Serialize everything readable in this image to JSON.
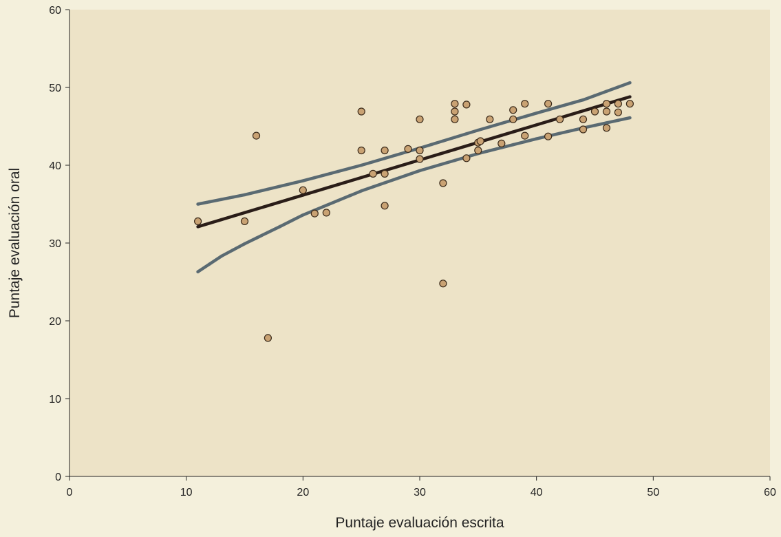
{
  "chart_data": {
    "type": "scatter",
    "title": "",
    "xlabel": "Puntaje evaluación escrita",
    "ylabel": "Puntaje evaluación oral",
    "xlim": [
      0,
      60
    ],
    "ylim": [
      0,
      60
    ],
    "x_ticks": [
      "0",
      "10",
      "20",
      "30",
      "40",
      "50",
      "60"
    ],
    "y_ticks": [
      "0",
      "10",
      "20",
      "30",
      "40",
      "50",
      "60"
    ],
    "grid": false,
    "legend": "none",
    "colors": {
      "page_background": "#f4f0dc",
      "plot_background": "#ede3c7",
      "point_fill": "#c9a273",
      "point_stroke": "#3a2a1a",
      "regression_line": "#2a1d18",
      "confidence_band": "#5a6a72",
      "ghost_points": "#ddd6c0"
    },
    "series": [
      {
        "type": "scatter",
        "points": [
          [
            11,
            32.8
          ],
          [
            15,
            32.8
          ],
          [
            16,
            43.8
          ],
          [
            17,
            17.8
          ],
          [
            20,
            36.8
          ],
          [
            21,
            33.8
          ],
          [
            22,
            33.9
          ],
          [
            25,
            46.9
          ],
          [
            25,
            41.9
          ],
          [
            26,
            38.9
          ],
          [
            27,
            41.9
          ],
          [
            27,
            38.9
          ],
          [
            27,
            34.8
          ],
          [
            29,
            42.1
          ],
          [
            30,
            41.9
          ],
          [
            30,
            45.9
          ],
          [
            30,
            40.8
          ],
          [
            32,
            37.7
          ],
          [
            32,
            24.8
          ],
          [
            33,
            47.9
          ],
          [
            33,
            46.9
          ],
          [
            33,
            45.9
          ],
          [
            34,
            47.8
          ],
          [
            34,
            40.9
          ],
          [
            35,
            41.9
          ],
          [
            35,
            42.9
          ],
          [
            35.2,
            43.1
          ],
          [
            36,
            45.9
          ],
          [
            37,
            42.8
          ],
          [
            38,
            47.1
          ],
          [
            38,
            45.9
          ],
          [
            39,
            47.9
          ],
          [
            39,
            43.8
          ],
          [
            41,
            47.9
          ],
          [
            41,
            43.7
          ],
          [
            42,
            45.9
          ],
          [
            44,
            45.9
          ],
          [
            44,
            44.6
          ],
          [
            45,
            46.9
          ],
          [
            46,
            47.9
          ],
          [
            46,
            46.9
          ],
          [
            46,
            44.8
          ],
          [
            47,
            47.9
          ],
          [
            47,
            46.8
          ],
          [
            48,
            47.9
          ]
        ]
      },
      {
        "type": "line",
        "role": "regression",
        "points": [
          [
            11,
            32.1
          ],
          [
            48,
            48.8
          ]
        ]
      },
      {
        "type": "line",
        "role": "upper-band",
        "points": [
          [
            11,
            35.0
          ],
          [
            15,
            36.2
          ],
          [
            20,
            38.0
          ],
          [
            25,
            40.0
          ],
          [
            30,
            42.2
          ],
          [
            35,
            44.5
          ],
          [
            40,
            46.7
          ],
          [
            44,
            48.4
          ],
          [
            48,
            50.6
          ]
        ]
      },
      {
        "type": "line",
        "role": "lower-band",
        "points": [
          [
            11,
            26.3
          ],
          [
            13,
            28.3
          ],
          [
            15,
            29.9
          ],
          [
            18,
            32.1
          ],
          [
            20,
            33.6
          ],
          [
            25,
            36.7
          ],
          [
            30,
            39.3
          ],
          [
            35,
            41.5
          ],
          [
            40,
            43.4
          ],
          [
            44,
            44.8
          ],
          [
            48,
            46.1
          ]
        ]
      }
    ]
  }
}
